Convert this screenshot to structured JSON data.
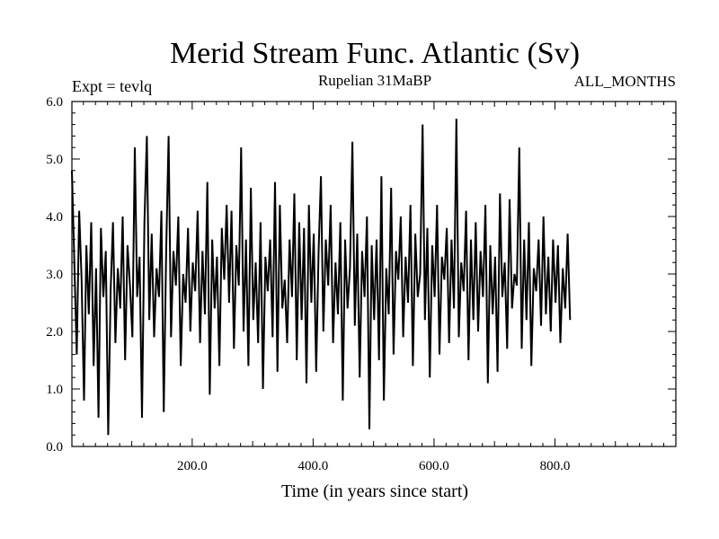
{
  "header": {
    "title": "Merid Stream Func. Atlantic (Sv)",
    "subtitle": "Rupelian  31MaBP",
    "left_label": "Expt = tevlq",
    "right_label": "ALL_MONTHS"
  },
  "chart_data": {
    "type": "line",
    "title": "Merid Stream Func. Atlantic (Sv)",
    "subtitle": "Rupelian  31MaBP",
    "xlabel": "Time (in years since start)",
    "ylabel": "",
    "xlim": [
      1,
      1000
    ],
    "ylim": [
      0,
      6
    ],
    "grid": false,
    "x_ticks": [
      200,
      400,
      600,
      800
    ],
    "x_tick_labels": [
      "200.0",
      "400.0",
      "600.0",
      "800.0"
    ],
    "y_ticks": [
      0,
      1,
      2,
      3,
      4,
      5,
      6
    ],
    "y_tick_labels": [
      "0.0",
      "1.0",
      "2.0",
      "3.0",
      "4.0",
      "5.0",
      "6.0"
    ],
    "color": "#000000",
    "series": [
      {
        "x_start": 1,
        "x_step": 4,
        "values": [
          4.8,
          3.2,
          1.6,
          4.1,
          2.9,
          0.8,
          3.5,
          2.3,
          3.9,
          1.4,
          3.1,
          0.5,
          3.8,
          2.6,
          3.4,
          0.2,
          2.7,
          3.9,
          1.8,
          3.1,
          2.4,
          4.0,
          1.5,
          3.5,
          2.8,
          1.9,
          5.2,
          2.6,
          3.3,
          0.5,
          3.9,
          5.4,
          2.2,
          3.7,
          1.9,
          3.1,
          2.6,
          4.1,
          0.6,
          3.4,
          5.4,
          1.9,
          3.4,
          2.8,
          4.0,
          1.4,
          3.0,
          2.5,
          3.8,
          2.0,
          3.2,
          2.7,
          4.1,
          1.8,
          3.4,
          2.3,
          4.6,
          0.9,
          3.6,
          2.4,
          3.3,
          1.4,
          3.8,
          2.9,
          4.2,
          2.5,
          4.1,
          1.7,
          3.5,
          2.8,
          5.2,
          2.0,
          3.6,
          1.4,
          4.5,
          2.2,
          3.2,
          1.8,
          3.9,
          1.0,
          3.3,
          2.7,
          3.6,
          1.9,
          4.6,
          1.3,
          4.2,
          2.4,
          2.9,
          1.8,
          3.6,
          2.6,
          4.4,
          1.5,
          3.9,
          2.2,
          3.8,
          1.1,
          4.2,
          2.5,
          3.7,
          1.3,
          3.4,
          4.7,
          2.0,
          3.6,
          2.8,
          4.2,
          1.8,
          3.2,
          2.3,
          3.9,
          0.8,
          3.6,
          2.4,
          3.1,
          5.3,
          2.1,
          3.7,
          1.2,
          3.4,
          2.6,
          4.0,
          0.3,
          3.5,
          2.2,
          3.6,
          1.5,
          4.7,
          0.8,
          3.1,
          2.3,
          4.5,
          1.6,
          3.4,
          2.9,
          4.0,
          1.9,
          3.3,
          2.5,
          4.2,
          1.4,
          3.7,
          2.6,
          3.0,
          5.6,
          2.2,
          3.8,
          1.2,
          3.5,
          2.6,
          4.2,
          1.6,
          3.3,
          2.9,
          3.8,
          1.8,
          3.6,
          2.4,
          5.7,
          1.9,
          3.2,
          2.7,
          4.1,
          1.5,
          3.6,
          2.2,
          3.9,
          2.0,
          3.4,
          2.6,
          4.2,
          1.1,
          3.5,
          2.3,
          3.3,
          1.3,
          4.4,
          2.6,
          3.2,
          1.7,
          4.3,
          2.4,
          3.0,
          2.8,
          5.2,
          1.7,
          3.6,
          2.2,
          3.9,
          1.4,
          3.1,
          2.7,
          3.6,
          2.1,
          4.0,
          2.3,
          3.3,
          2.0,
          3.6,
          2.5,
          3.5,
          1.8,
          3.1,
          2.4,
          3.7,
          2.2
        ]
      }
    ]
  }
}
